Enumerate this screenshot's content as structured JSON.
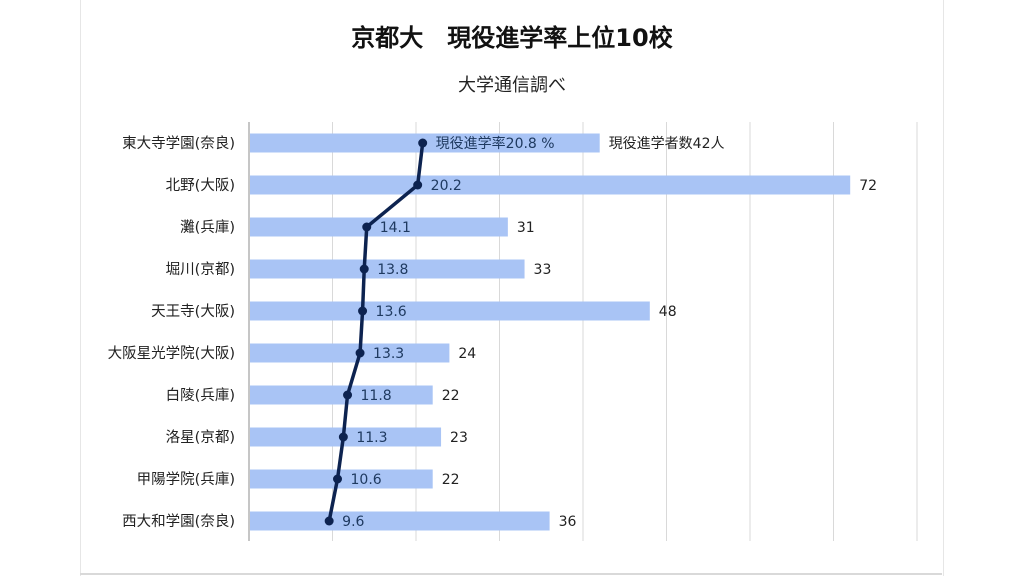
{
  "chart_data": {
    "type": "bar",
    "title": "京都大　現役進学率上位10校",
    "subtitle": "大学通信調べ",
    "categories": [
      "東大寺学園(奈良)",
      "北野(大阪)",
      "灘(兵庫)",
      "堀川(京都)",
      "天王寺(大阪)",
      "大阪星光学院(大阪)",
      "白陵(兵庫)",
      "洛星(京都)",
      "甲陽学院(兵庫)",
      "西大和学園(奈良)"
    ],
    "series": [
      {
        "name": "現役進学者数",
        "type": "bar",
        "color": "#a9c4f5",
        "values": [
          42,
          72,
          31,
          33,
          48,
          24,
          22,
          23,
          22,
          36
        ],
        "labels": [
          "現役進学者数42人",
          "72",
          "31",
          "33",
          "48",
          "24",
          "22",
          "23",
          "22",
          "36"
        ]
      },
      {
        "name": "現役進学率",
        "type": "line",
        "color": "#0d2350",
        "values": [
          20.8,
          20.2,
          14.1,
          13.8,
          13.6,
          13.3,
          11.8,
          11.3,
          10.6,
          9.6
        ],
        "labels": [
          "現役進学率20.8 %",
          "20.2",
          "14.1",
          "13.8",
          "13.6",
          "13.3",
          "11.8",
          "11.3",
          "10.6",
          "9.6"
        ]
      }
    ],
    "count_axis_range": [
      0,
      80
    ],
    "rate_axis_range": [
      0,
      80
    ],
    "gridlines": true,
    "gridline_color": "#d9d9d9"
  }
}
